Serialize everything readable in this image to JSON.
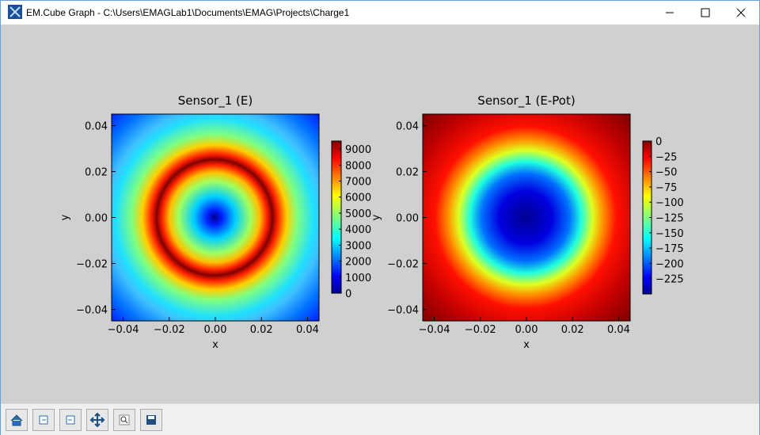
{
  "window": {
    "title": "EM.Cube Graph - C:\\Users\\EMAGLab1\\Documents\\EMAG\\Projects\\Charge1"
  },
  "chart_data": [
    {
      "type": "heatmap",
      "title": "Sensor_1 (E)",
      "x_label": "x",
      "y_label": "y",
      "xlim": [
        -0.045,
        0.045
      ],
      "ylim": [
        -0.045,
        0.045
      ],
      "xticks": [
        {
          "value": -0.04,
          "label": "−0.04"
        },
        {
          "value": -0.02,
          "label": "−0.02"
        },
        {
          "value": 0,
          "label": "0.00"
        },
        0.02,
        0.04
      ],
      "yticks": [
        {
          "value": -0.04,
          "label": "−0.04"
        },
        {
          "value": -0.02,
          "label": "−0.02"
        },
        {
          "value": 0,
          "label": "0.00"
        },
        0.02,
        0.04
      ],
      "colormap": "jet",
      "clim": [
        0,
        9500
      ],
      "cticks": [
        0,
        1000,
        2000,
        3000,
        4000,
        5000,
        6000,
        7000,
        8000,
        9000
      ]
    },
    {
      "type": "heatmap",
      "title": "Sensor_1 (E-Pot)",
      "x_label": "x",
      "y_label": "y",
      "xlim": [
        -0.045,
        0.045
      ],
      "ylim": [
        -0.045,
        0.045
      ],
      "xticks": [
        {
          "value": -0.04,
          "label": "−0.04"
        },
        {
          "value": -0.02,
          "label": "−0.02"
        },
        {
          "value": 0,
          "label": "0.00"
        },
        0.02,
        0.04
      ],
      "yticks": [
        {
          "value": -0.04,
          "label": "−0.04"
        },
        {
          "value": -0.02,
          "label": "−0.02"
        },
        {
          "value": 0,
          "label": "0.00"
        },
        0.02,
        0.04
      ],
      "colormap": "jet",
      "clim": [
        -250,
        0
      ],
      "cticks": [
        0,
        {
          "value": -25,
          "label": "−25"
        },
        {
          "value": -50,
          "label": "−50"
        },
        {
          "value": -75,
          "label": "−75"
        },
        {
          "value": -100,
          "label": "−100"
        },
        {
          "value": -125,
          "label": "−125"
        },
        {
          "value": -150,
          "label": "−150"
        },
        {
          "value": -175,
          "label": "−175"
        },
        {
          "value": -200,
          "label": "−200"
        },
        {
          "value": -225,
          "label": "−225"
        }
      ]
    }
  ]
}
